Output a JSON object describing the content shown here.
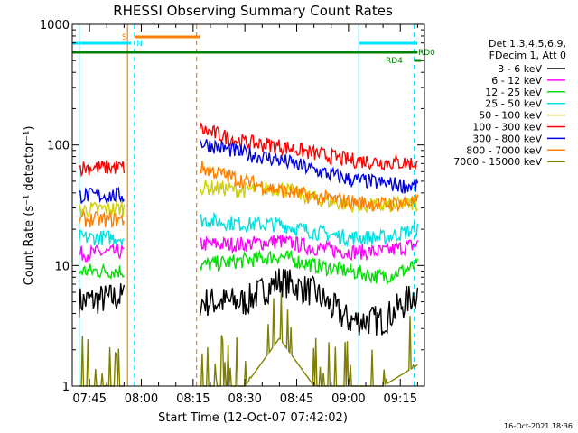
{
  "chart_data": {
    "type": "line",
    "title": "RHESSI Observing Summary Count Rates",
    "xlabel": "Start Time (12-Oct-07 07:42:02)",
    "ylabel": "Count Rate (s⁻¹ detector⁻¹)",
    "yscale": "log",
    "ylim": [
      1,
      1000
    ],
    "xlim": [
      "07:40",
      "09:22"
    ],
    "x_ticks": [
      "07:45",
      "08:00",
      "08:15",
      "08:30",
      "08:45",
      "09:00",
      "09:15"
    ],
    "y_ticks": [
      "1",
      "10",
      "100",
      "1000"
    ],
    "grid": false,
    "legend_position": "right",
    "legend_header": [
      "Det 1,3,4,5,6,9,",
      "FDecim 1, Att 0"
    ],
    "timestamp": "16-Oct-2021 18:36",
    "colors": {
      "axis": "#000000",
      "night": "#00e5ff",
      "saa": "#ff8000",
      "rd": "#008000"
    },
    "segments": [
      [
        "07:42",
        "07:55"
      ],
      [
        "08:17",
        "09:20"
      ]
    ],
    "series": [
      {
        "name": "3 - 6 keV",
        "color": "#000000",
        "values": [
          5,
          5.5,
          5,
          5,
          7.5,
          6,
          3.5,
          3.5,
          6
        ]
      },
      {
        "name": "6 - 12 keV",
        "color": "#ff00ff",
        "values": [
          12.5,
          13,
          15,
          15,
          16,
          14,
          13,
          13,
          15
        ]
      },
      {
        "name": "12 - 25 keV",
        "color": "#00e000",
        "values": [
          9,
          9,
          10,
          11,
          12,
          10,
          9,
          8,
          10
        ]
      },
      {
        "name": "25 - 50 keV",
        "color": "#00e0e0",
        "values": [
          17,
          17,
          24,
          22,
          22,
          19,
          17,
          17,
          20
        ]
      },
      {
        "name": "50 - 100 keV",
        "color": "#d0d000",
        "values": [
          29,
          30,
          45,
          42,
          44,
          36,
          32,
          31,
          33
        ]
      },
      {
        "name": "100 - 300 keV",
        "color": "#ff0000",
        "values": [
          65,
          65,
          135,
          105,
          98,
          85,
          75,
          72,
          70
        ]
      },
      {
        "name": "300 - 800 keV",
        "color": "#0000e0",
        "values": [
          38,
          38,
          105,
          85,
          75,
          62,
          52,
          48,
          45
        ]
      },
      {
        "name": "800 - 7000 keV",
        "color": "#ff8000",
        "values": [
          24,
          24,
          65,
          50,
          42,
          37,
          34,
          32,
          34
        ]
      },
      {
        "name": "7000 - 15000 keV",
        "color": "#808000",
        "values": [
          1,
          1,
          1,
          1,
          2.5,
          1,
          1,
          1,
          1.5
        ]
      }
    ],
    "series_times": [
      "07:42",
      "07:55",
      "08:17",
      "08:30",
      "08:40",
      "08:50",
      "09:00",
      "09:10",
      "09:20"
    ],
    "flags": {
      "saa": {
        "label": "S",
        "start": "07:58",
        "end": "08:17"
      },
      "night": [
        {
          "label": "N",
          "start": "07:40",
          "end": "07:57"
        },
        {
          "label": "",
          "start": "09:03",
          "end": "09:20"
        }
      ],
      "rd0": {
        "label": "RD0",
        "start": "07:40",
        "end": "09:20"
      },
      "rd4": {
        "label": "RD4",
        "start": "09:19",
        "end": "09:21"
      }
    },
    "vertical_lines": [
      {
        "type": "night",
        "time": "07:42",
        "style": "solid"
      },
      {
        "type": "saa",
        "time": "07:56",
        "style": "solid"
      },
      {
        "type": "night",
        "time": "07:58",
        "style": "dashed"
      },
      {
        "type": "saa",
        "time": "08:16",
        "style": "dashed"
      },
      {
        "type": "night",
        "time": "09:03",
        "style": "solid"
      },
      {
        "type": "night",
        "time": "09:19",
        "style": "dashed"
      }
    ]
  }
}
